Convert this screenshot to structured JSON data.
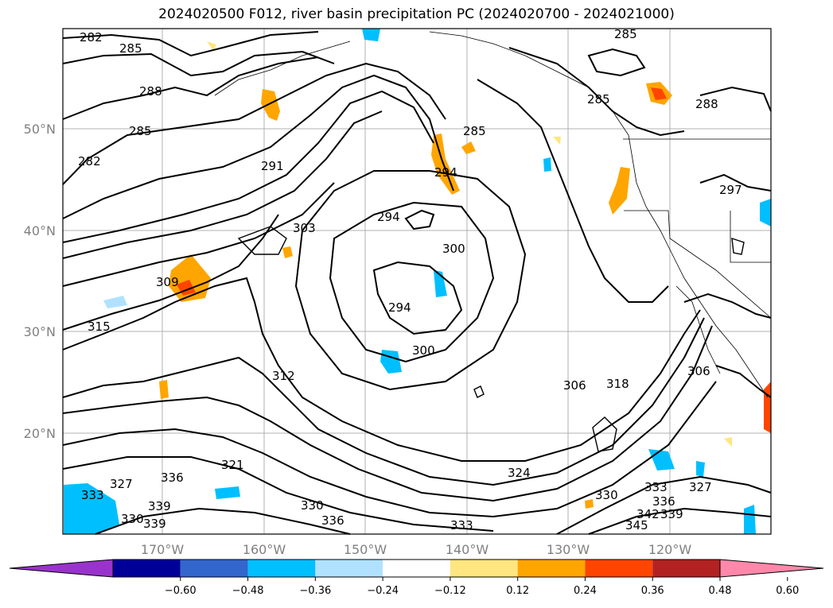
{
  "title": "2024020500 F012, river basin precipitation PC (2024020700 - 2024021000)",
  "lat_labels": [
    "50°N",
    "40°N",
    "30°N",
    "20°N"
  ],
  "lon_labels": [
    "170°W",
    "160°W",
    "150°W",
    "140°W",
    "130°W",
    "120°W"
  ],
  "contour_labels": [
    "282",
    "285",
    "288",
    "285",
    "282",
    "291",
    "303",
    "309",
    "315",
    "294",
    "300",
    "294",
    "300",
    "312",
    "306",
    "318",
    "321",
    "324",
    "327",
    "330",
    "333",
    "336",
    "339",
    "336",
    "330",
    "333",
    "330",
    "336",
    "333",
    "342",
    "339",
    "345",
    "327",
    "339",
    "285",
    "285",
    "288",
    "297",
    "306",
    "294",
    "285"
  ],
  "colorbar": {
    "ticks": [
      "−0.60",
      "−0.48",
      "−0.36",
      "−0.24",
      "−0.12",
      "0.12",
      "0.24",
      "0.36",
      "0.48",
      "0.60"
    ],
    "colors": [
      "#9933cc",
      "#000099",
      "#3366cc",
      "#00bfff",
      "#b0e2ff",
      "#ffffff",
      "#ffe680",
      "#ffa500",
      "#ff4500",
      "#b22222",
      "#ff88aa"
    ]
  },
  "shading_colors": {
    "positive_low": "#ffa500",
    "positive_mid": "#ff4500",
    "negative_low": "#00bfff",
    "negative_faint": "#b0e2ff",
    "positive_faint": "#ffe680"
  }
}
